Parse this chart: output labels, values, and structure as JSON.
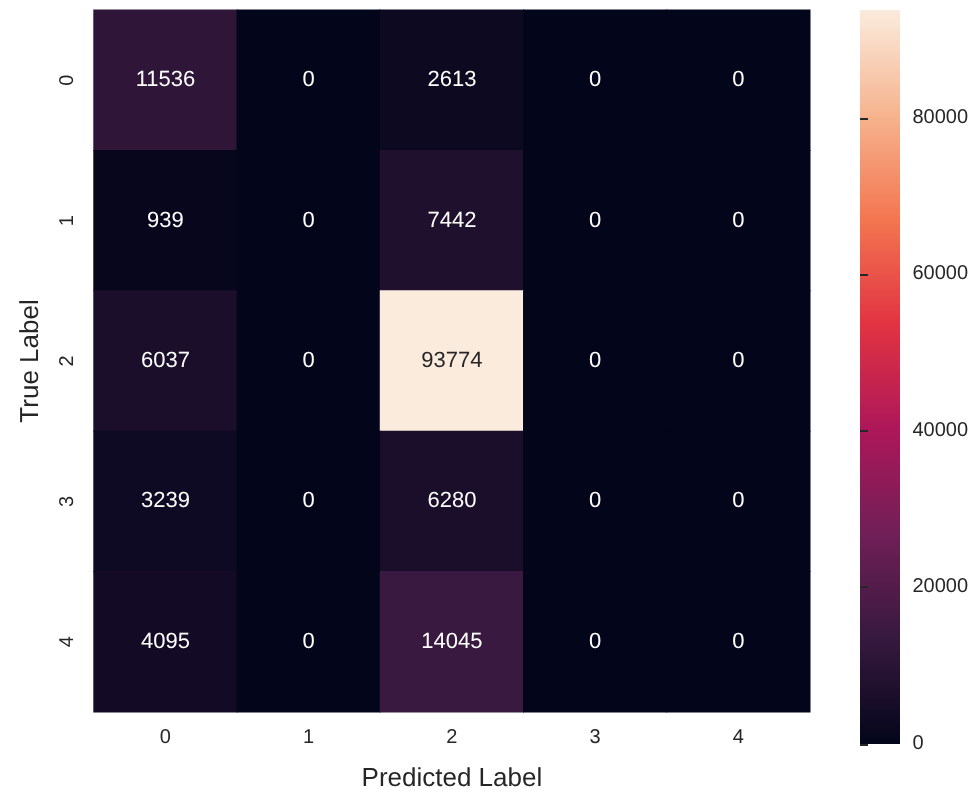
{
  "chart_data": {
    "type": "heatmap",
    "xlabel": "Predicted Label",
    "ylabel": "True Label",
    "categories": [
      "0",
      "1",
      "2",
      "3",
      "4"
    ],
    "y_categories": [
      "0",
      "1",
      "2",
      "3",
      "4"
    ],
    "cells": [
      [
        11536,
        0,
        2613,
        0,
        0
      ],
      [
        939,
        0,
        7442,
        0,
        0
      ],
      [
        6037,
        0,
        93774,
        0,
        0
      ],
      [
        3239,
        0,
        6280,
        0,
        0
      ],
      [
        4095,
        0,
        14045,
        0,
        0
      ]
    ],
    "data_labels": true,
    "clim": [
      0,
      93774
    ],
    "cticks": [
      0,
      20000,
      40000,
      60000,
      80000
    ]
  }
}
